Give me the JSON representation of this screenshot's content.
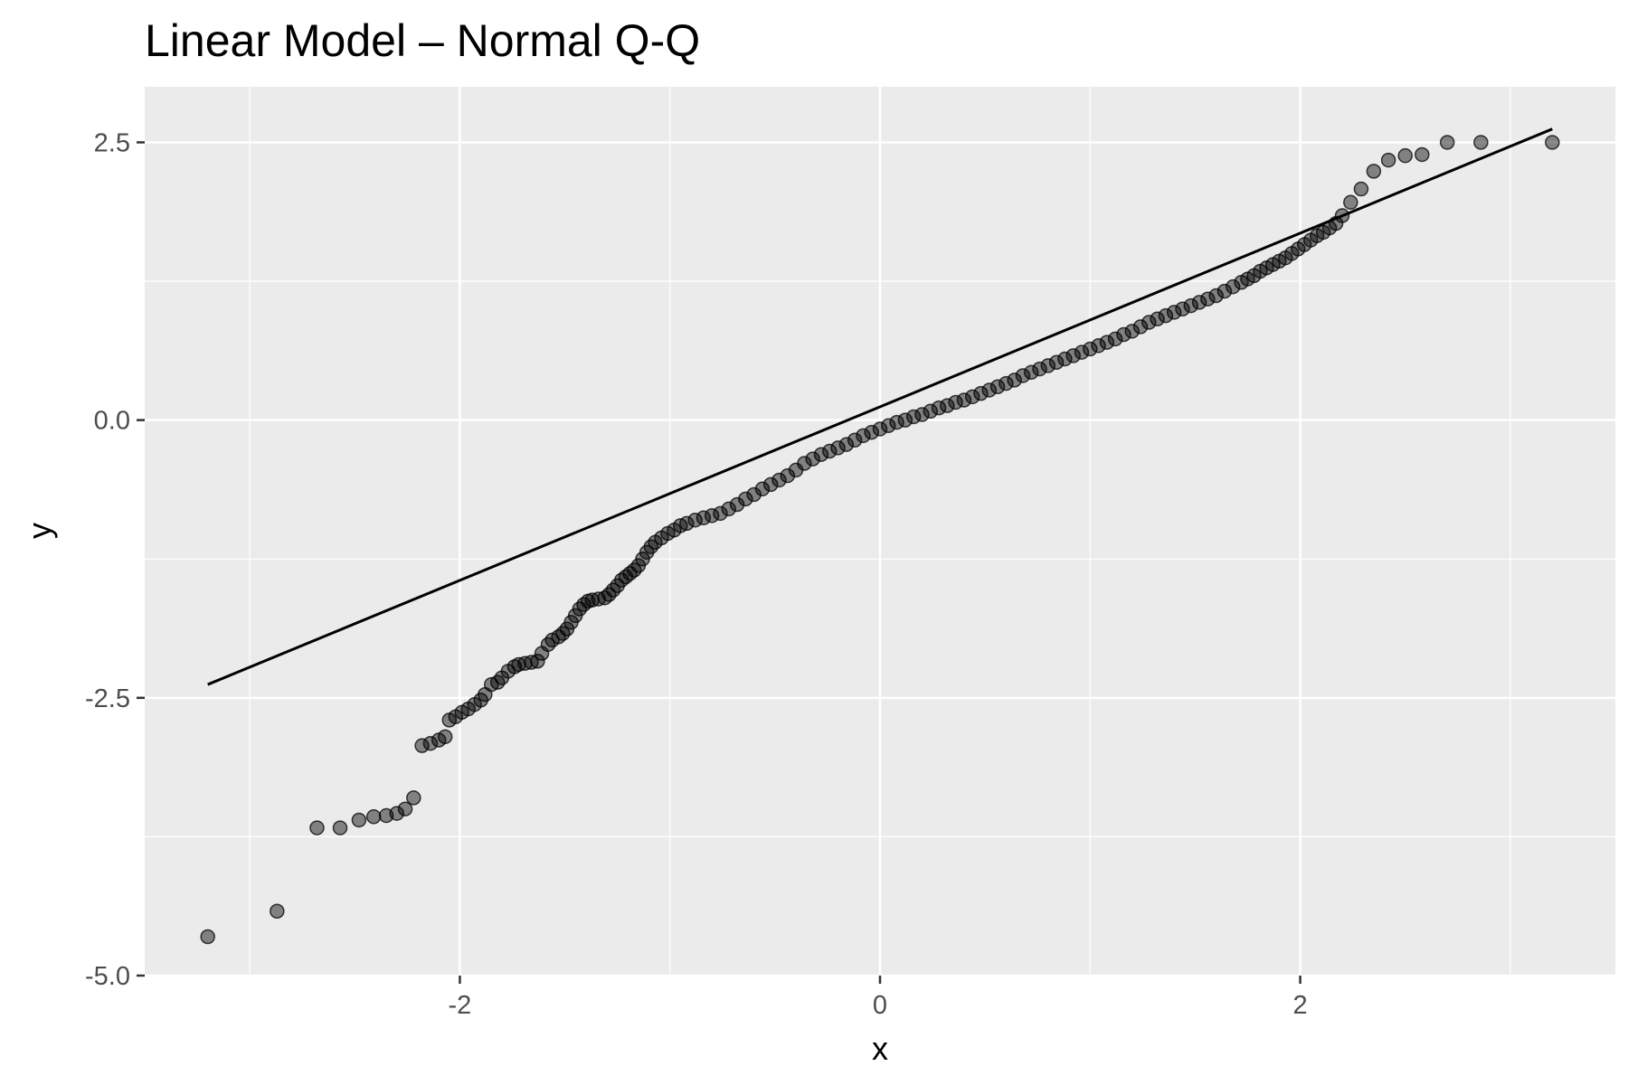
{
  "chart_data": {
    "type": "scatter",
    "title": "Linear Model – Normal Q-Q",
    "xlabel": "x",
    "ylabel": "y",
    "xlim": [
      -3.5,
      3.5
    ],
    "ylim": [
      -5.0,
      3.0
    ],
    "x_ticks": [
      -2,
      0,
      2
    ],
    "x_tick_labels": [
      "-2",
      "0",
      "2"
    ],
    "y_ticks": [
      -5.0,
      -2.5,
      0.0,
      2.5
    ],
    "y_tick_labels": [
      "-5.0",
      "-2.5",
      "0.0",
      "2.5"
    ],
    "grid": true,
    "legend": "none",
    "reference_line": {
      "x": [
        -3.2,
        3.2
      ],
      "y": [
        -2.38,
        2.62
      ]
    },
    "series": [
      {
        "name": "",
        "points": [
          [
            -3.2,
            -4.65
          ],
          [
            -2.87,
            -4.42
          ],
          [
            -2.68,
            -3.67
          ],
          [
            -2.57,
            -3.67
          ],
          [
            -2.48,
            -3.6
          ],
          [
            -2.41,
            -3.57
          ],
          [
            -2.35,
            -3.56
          ],
          [
            -2.3,
            -3.54
          ],
          [
            -2.26,
            -3.5
          ],
          [
            -2.22,
            -3.4
          ],
          [
            -2.18,
            -2.93
          ],
          [
            -2.14,
            -2.91
          ],
          [
            -2.1,
            -2.88
          ],
          [
            -2.07,
            -2.85
          ],
          [
            -2.05,
            -2.7
          ],
          [
            -2.02,
            -2.67
          ],
          [
            -1.99,
            -2.63
          ],
          [
            -1.96,
            -2.6
          ],
          [
            -1.93,
            -2.56
          ],
          [
            -1.9,
            -2.52
          ],
          [
            -1.88,
            -2.47
          ],
          [
            -1.85,
            -2.38
          ],
          [
            -1.82,
            -2.36
          ],
          [
            -1.8,
            -2.32
          ],
          [
            -1.77,
            -2.26
          ],
          [
            -1.74,
            -2.22
          ],
          [
            -1.72,
            -2.2
          ],
          [
            -1.69,
            -2.19
          ],
          [
            -1.66,
            -2.18
          ],
          [
            -1.63,
            -2.17
          ],
          [
            -1.61,
            -2.1
          ],
          [
            -1.58,
            -2.02
          ],
          [
            -1.56,
            -1.98
          ],
          [
            -1.53,
            -1.95
          ],
          [
            -1.51,
            -1.92
          ],
          [
            -1.49,
            -1.88
          ],
          [
            -1.47,
            -1.82
          ],
          [
            -1.45,
            -1.76
          ],
          [
            -1.43,
            -1.7
          ],
          [
            -1.41,
            -1.66
          ],
          [
            -1.39,
            -1.63
          ],
          [
            -1.37,
            -1.62
          ],
          [
            -1.34,
            -1.61
          ],
          [
            -1.31,
            -1.6
          ],
          [
            -1.29,
            -1.57
          ],
          [
            -1.27,
            -1.53
          ],
          [
            -1.25,
            -1.49
          ],
          [
            -1.23,
            -1.44
          ],
          [
            -1.21,
            -1.41
          ],
          [
            -1.19,
            -1.38
          ],
          [
            -1.17,
            -1.35
          ],
          [
            -1.15,
            -1.31
          ],
          [
            -1.13,
            -1.25
          ],
          [
            -1.11,
            -1.19
          ],
          [
            -1.09,
            -1.14
          ],
          [
            -1.07,
            -1.1
          ],
          [
            -1.04,
            -1.06
          ],
          [
            -1.01,
            -1.02
          ],
          [
            -0.98,
            -0.99
          ],
          [
            -0.95,
            -0.95
          ],
          [
            -0.92,
            -0.93
          ],
          [
            -0.88,
            -0.9
          ],
          [
            -0.84,
            -0.88
          ],
          [
            -0.8,
            -0.86
          ],
          [
            -0.76,
            -0.84
          ],
          [
            -0.72,
            -0.8
          ],
          [
            -0.68,
            -0.76
          ],
          [
            -0.64,
            -0.71
          ],
          [
            -0.6,
            -0.67
          ],
          [
            -0.56,
            -0.62
          ],
          [
            -0.52,
            -0.58
          ],
          [
            -0.48,
            -0.54
          ],
          [
            -0.44,
            -0.5
          ],
          [
            -0.4,
            -0.45
          ],
          [
            -0.36,
            -0.39
          ],
          [
            -0.32,
            -0.35
          ],
          [
            -0.28,
            -0.31
          ],
          [
            -0.24,
            -0.28
          ],
          [
            -0.2,
            -0.25
          ],
          [
            -0.16,
            -0.22
          ],
          [
            -0.12,
            -0.18
          ],
          [
            -0.08,
            -0.14
          ],
          [
            -0.04,
            -0.11
          ],
          [
            0.0,
            -0.08
          ],
          [
            0.04,
            -0.05
          ],
          [
            0.08,
            -0.02
          ],
          [
            0.12,
            0.0
          ],
          [
            0.16,
            0.03
          ],
          [
            0.2,
            0.05
          ],
          [
            0.24,
            0.08
          ],
          [
            0.28,
            0.11
          ],
          [
            0.32,
            0.13
          ],
          [
            0.36,
            0.16
          ],
          [
            0.4,
            0.18
          ],
          [
            0.44,
            0.21
          ],
          [
            0.48,
            0.24
          ],
          [
            0.52,
            0.27
          ],
          [
            0.56,
            0.3
          ],
          [
            0.6,
            0.33
          ],
          [
            0.64,
            0.36
          ],
          [
            0.68,
            0.4
          ],
          [
            0.72,
            0.43
          ],
          [
            0.76,
            0.46
          ],
          [
            0.8,
            0.49
          ],
          [
            0.84,
            0.52
          ],
          [
            0.88,
            0.55
          ],
          [
            0.92,
            0.58
          ],
          [
            0.96,
            0.61
          ],
          [
            1.0,
            0.64
          ],
          [
            1.04,
            0.67
          ],
          [
            1.08,
            0.7
          ],
          [
            1.12,
            0.73
          ],
          [
            1.16,
            0.77
          ],
          [
            1.2,
            0.8
          ],
          [
            1.24,
            0.84
          ],
          [
            1.28,
            0.88
          ],
          [
            1.32,
            0.91
          ],
          [
            1.36,
            0.94
          ],
          [
            1.4,
            0.97
          ],
          [
            1.44,
            1.0
          ],
          [
            1.48,
            1.03
          ],
          [
            1.52,
            1.06
          ],
          [
            1.56,
            1.09
          ],
          [
            1.6,
            1.12
          ],
          [
            1.64,
            1.16
          ],
          [
            1.68,
            1.2
          ],
          [
            1.72,
            1.24
          ],
          [
            1.75,
            1.27
          ],
          [
            1.78,
            1.3
          ],
          [
            1.81,
            1.34
          ],
          [
            1.84,
            1.37
          ],
          [
            1.87,
            1.4
          ],
          [
            1.9,
            1.43
          ],
          [
            1.93,
            1.46
          ],
          [
            1.96,
            1.5
          ],
          [
            1.99,
            1.54
          ],
          [
            2.02,
            1.58
          ],
          [
            2.05,
            1.62
          ],
          [
            2.08,
            1.66
          ],
          [
            2.11,
            1.69
          ],
          [
            2.14,
            1.73
          ],
          [
            2.17,
            1.77
          ],
          [
            2.2,
            1.84
          ],
          [
            2.24,
            1.96
          ],
          [
            2.29,
            2.08
          ],
          [
            2.35,
            2.24
          ],
          [
            2.42,
            2.34
          ],
          [
            2.5,
            2.38
          ],
          [
            2.58,
            2.39
          ],
          [
            2.7,
            2.5
          ],
          [
            2.86,
            2.5
          ],
          [
            3.2,
            2.5
          ]
        ]
      }
    ]
  }
}
